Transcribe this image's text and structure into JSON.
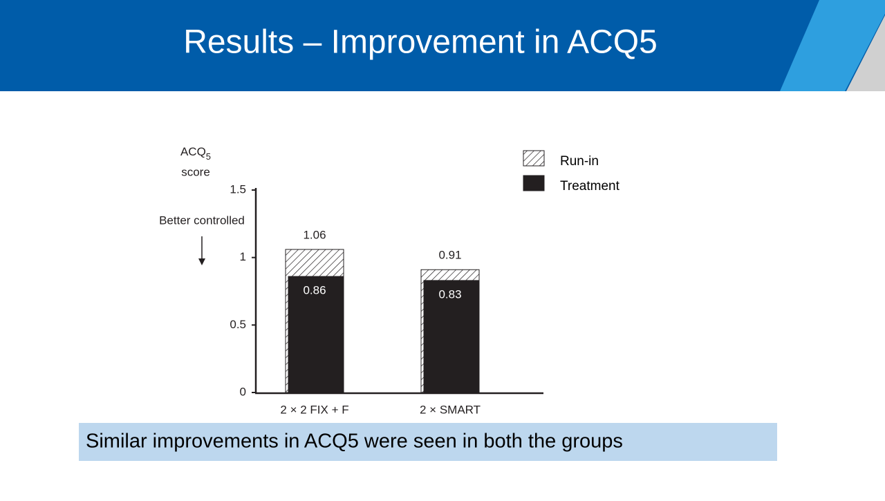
{
  "slide": {
    "title": "Results – Improvement in ACQ5",
    "note": "Similar improvements in ACQ5 were seen in both the groups"
  },
  "chart_data": {
    "type": "bar",
    "overlap": true,
    "ylabel": {
      "main": "ACQ",
      "subscript": "5",
      "second_line": "score"
    },
    "annotation": "Better controlled",
    "categories": [
      "2 × 2 FIX + F",
      "2 × SMART"
    ],
    "series": [
      {
        "name": "Run-in",
        "color": "#231f20",
        "pattern": "hatch",
        "values": [
          1.06,
          0.91
        ]
      },
      {
        "name": "Treatment",
        "color": "#231f20",
        "values": [
          0.86,
          0.83
        ]
      }
    ],
    "ylim": [
      0,
      1.5
    ],
    "yticks": [
      0,
      0.5,
      1,
      1.5
    ],
    "grid": false,
    "legend": "top-right"
  }
}
